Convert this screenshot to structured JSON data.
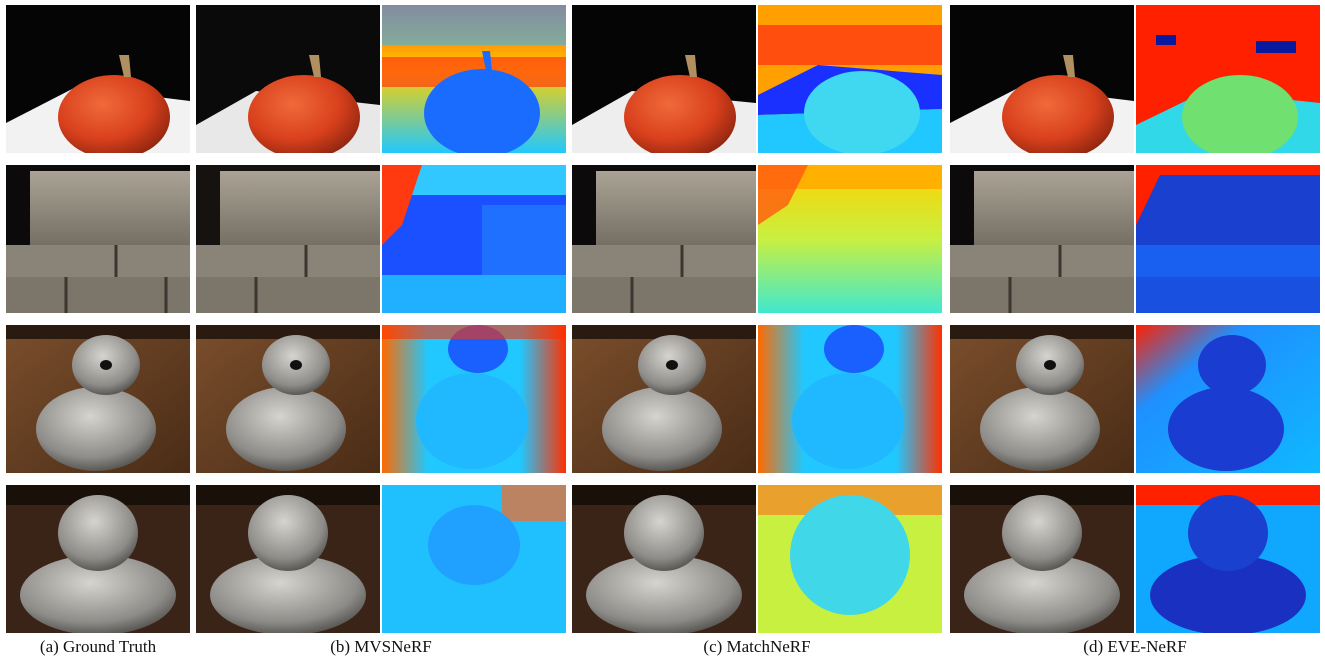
{
  "captions": {
    "gt": "(a) Ground Truth",
    "mvsnerf": "(b) MVSNeRF",
    "matchnerf": "(c) MatchNeRF",
    "evenerf": "(d) EVE-NeRF"
  },
  "rows": [
    "pumpkin",
    "bricks",
    "bear-statue",
    "buddha-statue"
  ],
  "columns": [
    "ground-truth-render",
    "mvsnerf-render",
    "mvsnerf-depth",
    "matchnerf-render",
    "matchnerf-depth",
    "evenerf-render",
    "evenerf-depth"
  ],
  "colors": {
    "depth_near": "#1a3cff",
    "depth_mid": "#1ec8ff",
    "depth_far": "#ff2a00",
    "depth_yellow": "#ffe600",
    "pumpkin": "#d8401c",
    "brick": "#8d877c",
    "stone": "#9c9a96",
    "wood": "#6b4428"
  }
}
